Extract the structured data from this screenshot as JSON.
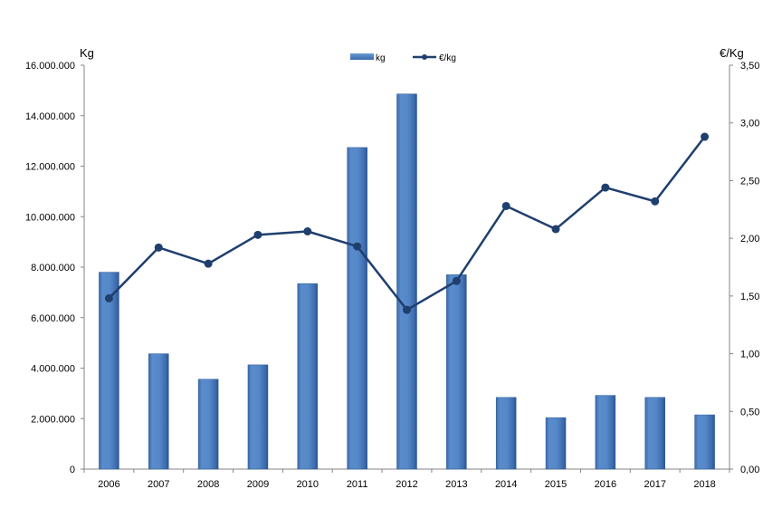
{
  "chart_data": {
    "type": "bar",
    "categories": [
      "2006",
      "2007",
      "2008",
      "2009",
      "2010",
      "2011",
      "2012",
      "2013",
      "2014",
      "2015",
      "2016",
      "2017",
      "2018"
    ],
    "series": [
      {
        "name": "kg",
        "type": "bar",
        "axis": "left",
        "color": "#4f81bd",
        "values": [
          7800000,
          4570000,
          3560000,
          4130000,
          7350000,
          12740000,
          14860000,
          7700000,
          2840000,
          2040000,
          2920000,
          2840000,
          2150000
        ]
      },
      {
        "name": "€/kg",
        "type": "line",
        "axis": "right",
        "color": "#1f3f6e",
        "values": [
          1.48,
          1.92,
          1.78,
          2.03,
          2.06,
          1.93,
          1.38,
          1.63,
          2.28,
          2.08,
          2.44,
          2.32,
          2.88
        ]
      }
    ],
    "ylabel_left": "Kg",
    "ylabel_right": "€/Kg",
    "ylim_left": [
      0,
      16000000
    ],
    "ylim_right": [
      0,
      3.5
    ],
    "yticks_left": [
      "0",
      "2.000.000",
      "4.000.000",
      "6.000.000",
      "8.000.000",
      "10.000.000",
      "12.000.000",
      "14.000.000",
      "16.000.000"
    ],
    "yticks_right": [
      "0,00",
      "0,50",
      "1,00",
      "1,50",
      "2,00",
      "2,50",
      "3,00",
      "3,50"
    ],
    "grid": false,
    "legend_position": "top-center"
  }
}
